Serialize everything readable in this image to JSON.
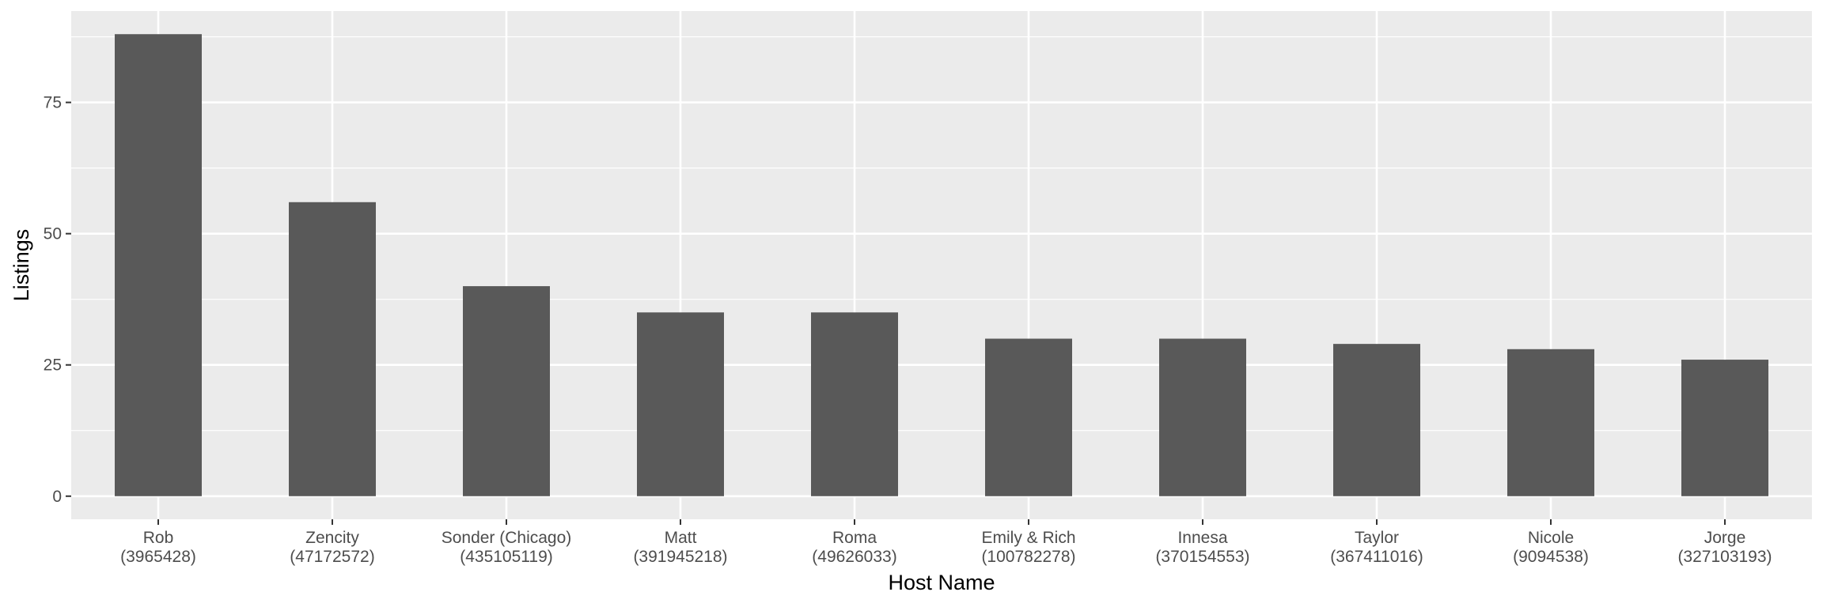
{
  "chart_data": {
    "type": "bar",
    "title": "",
    "xlabel": "Host Name",
    "ylabel": "Listings",
    "categories": [
      "Rob\n(3965428)",
      "Zencity\n(47172572)",
      "Sonder (Chicago)\n(435105119)",
      "Matt\n(391945218)",
      "Roma\n(49626033)",
      "Emily & Rich\n(100782278)",
      "Innesa\n(370154553)",
      "Taylor\n(367411016)",
      "Nicole\n(9094538)",
      "Jorge\n(327103193)"
    ],
    "values": [
      88,
      56,
      40,
      35,
      35,
      30,
      30,
      29,
      28,
      26
    ],
    "ylim": [
      -4.4,
      92.4
    ],
    "yticks": [
      0,
      25,
      50,
      75
    ],
    "grid": true,
    "legend": "none",
    "colors": {
      "bar": "#595959",
      "panel": "#ebebeb",
      "grid_major": "#ffffff",
      "tick_text": "#4d4d4d",
      "tick_mark": "#333333"
    }
  }
}
